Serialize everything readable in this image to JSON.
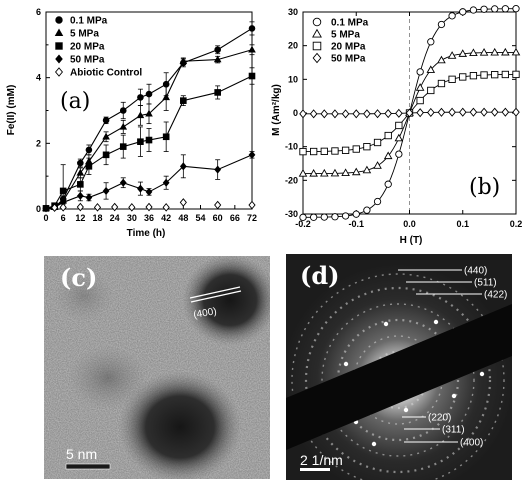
{
  "panels": {
    "a": "(a)",
    "b": "(b)",
    "c": "(c)",
    "d": "(d)"
  },
  "chart_data": [
    {
      "type": "line",
      "panel": "a",
      "xlabel": "Time (h)",
      "ylabel": "Fe(II) (mM)",
      "xlim": [
        0,
        72
      ],
      "ylim": [
        0,
        6
      ],
      "xticks": [
        0,
        6,
        12,
        18,
        24,
        30,
        36,
        42,
        48,
        54,
        60,
        66,
        72
      ],
      "yticks": [
        0,
        2,
        4,
        6
      ],
      "legend_position": "top-left",
      "series": [
        {
          "name": "0.1 MPa",
          "marker": "circle-filled",
          "x": [
            0,
            3,
            6,
            12,
            15,
            21,
            27,
            33,
            36,
            42,
            48,
            60,
            72
          ],
          "y": [
            0.02,
            0.05,
            0.3,
            1.4,
            1.8,
            2.7,
            3.0,
            3.4,
            3.5,
            3.8,
            4.45,
            4.85,
            5.5
          ],
          "err": [
            0.02,
            0.03,
            0.1,
            0.12,
            0.15,
            0.1,
            0.25,
            0.25,
            0.3,
            0.35,
            0.12,
            0.12,
            0.2
          ]
        },
        {
          "name": "5 MPa",
          "marker": "triangle-filled",
          "x": [
            0,
            3,
            6,
            12,
            15,
            21,
            27,
            33,
            36,
            42,
            48,
            60,
            72
          ],
          "y": [
            0.02,
            0.05,
            0.25,
            1.1,
            1.45,
            2.2,
            2.5,
            2.85,
            2.9,
            3.4,
            4.5,
            4.55,
            4.85
          ],
          "err": [
            0.02,
            0.03,
            0.1,
            0.15,
            0.2,
            0.15,
            0.2,
            0.3,
            0.3,
            0.4,
            0.1,
            0.1,
            0.15
          ]
        },
        {
          "name": "20 MPa",
          "marker": "square-filled",
          "x": [
            0,
            3,
            6,
            12,
            15,
            21,
            27,
            33,
            36,
            42,
            48,
            60,
            72
          ],
          "y": [
            0.02,
            0.1,
            0.55,
            0.75,
            1.3,
            1.65,
            1.9,
            2.05,
            2.1,
            2.2,
            3.3,
            3.55,
            4.05
          ],
          "err": [
            0.02,
            0.03,
            0.8,
            0.2,
            0.25,
            0.3,
            0.35,
            0.45,
            0.35,
            0.45,
            0.15,
            0.2,
            0.25
          ]
        },
        {
          "name": "50 MPa",
          "marker": "diamond-filled",
          "x": [
            0,
            3,
            6,
            12,
            15,
            21,
            27,
            33,
            36,
            42,
            48,
            60,
            72
          ],
          "y": [
            0.02,
            0.05,
            0.2,
            0.4,
            0.35,
            0.55,
            0.8,
            0.62,
            0.52,
            0.8,
            1.3,
            1.2,
            1.65
          ],
          "err": [
            0.02,
            0.02,
            0.15,
            0.15,
            0.1,
            0.25,
            0.15,
            0.2,
            0.1,
            0.2,
            0.35,
            0.3,
            0.1
          ]
        },
        {
          "name": "Abiotic Control",
          "marker": "diamond-open",
          "line": false,
          "x": [
            3,
            6,
            12,
            18,
            24,
            30,
            36,
            42,
            48,
            60,
            72
          ],
          "y": [
            0.04,
            0.05,
            0.06,
            0.05,
            0.06,
            0.05,
            0.06,
            0.05,
            0.2,
            0.12,
            0.12
          ]
        }
      ]
    },
    {
      "type": "line",
      "panel": "b",
      "xlabel": "H (T)",
      "ylabel": "M (Am²/kg)",
      "xlim": [
        -0.2,
        0.2
      ],
      "ylim": [
        -30,
        30
      ],
      "xticks": [
        -0.2,
        -0.1,
        0.0,
        0.1,
        0.2
      ],
      "yticks": [
        -30,
        -20,
        -10,
        0,
        10,
        20,
        30
      ],
      "legend_position": "top-left",
      "series": [
        {
          "name": "0.1 MPa",
          "marker": "circle-open",
          "Ms": 31,
          "a": 0.048
        },
        {
          "name": "5 MPa",
          "marker": "triangle-open",
          "Ms": 18,
          "a": 0.045
        },
        {
          "name": "20 MPa",
          "marker": "square-open",
          "Ms": 11.5,
          "a": 0.06
        },
        {
          "name": "50 MPa",
          "marker": "diamond-open",
          "Ms": 0.25,
          "a": 0.05
        }
      ]
    }
  ],
  "images": {
    "c": {
      "scale_bar": "5 nm",
      "lattice_label": "(400)"
    },
    "d": {
      "scale_bar": "2 1/nm",
      "ring_labels": [
        "(440)",
        "(511)",
        "(422)",
        "(220)",
        "(311)",
        "(400)"
      ]
    }
  }
}
